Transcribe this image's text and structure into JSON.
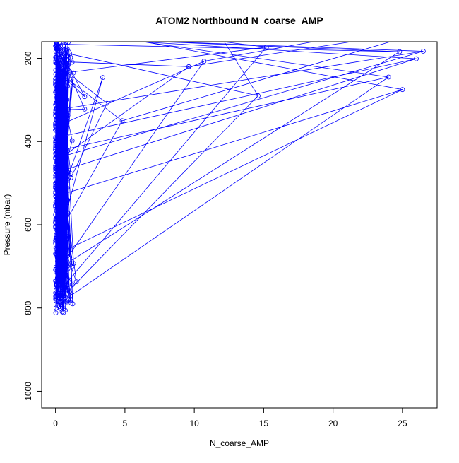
{
  "chart_data": {
    "type": "scatter",
    "title": "ATOM2 Northbound N_coarse_AMP",
    "xlabel": "N_coarse_AMP",
    "ylabel": "Pressure (mbar)",
    "xlim": [
      -1,
      27.5
    ],
    "ylim": [
      1040,
      160
    ],
    "y_reversed": true,
    "x_ticks": [
      0,
      5,
      10,
      15,
      20,
      25
    ],
    "y_ticks": [
      200,
      400,
      600,
      800,
      1000
    ],
    "x_tick_labels": [
      "0",
      "5",
      "10",
      "15",
      "20",
      "25"
    ],
    "y_tick_labels": [
      "200",
      "400",
      "600",
      "800",
      "1000"
    ],
    "marker": "open-circle",
    "connected": true,
    "series_color": "#0000ff",
    "outliers": [
      {
        "x": 26.5,
        "y": 183
      },
      {
        "x": 24.8,
        "y": 184
      },
      {
        "x": 26.0,
        "y": 201
      },
      {
        "x": 24.0,
        "y": 245
      },
      {
        "x": 25.0,
        "y": 275
      },
      {
        "x": 15.2,
        "y": 173
      },
      {
        "x": 14.6,
        "y": 290
      },
      {
        "x": 10.7,
        "y": 207
      },
      {
        "x": 9.6,
        "y": 220
      },
      {
        "x": 4.8,
        "y": 350
      },
      {
        "x": 3.7,
        "y": 308
      },
      {
        "x": 3.4,
        "y": 246
      },
      {
        "x": 2.1,
        "y": 292
      },
      {
        "x": 2.1,
        "y": 322
      },
      {
        "x": 1.2,
        "y": 398
      },
      {
        "x": 1.1,
        "y": 477
      },
      {
        "x": 1.1,
        "y": 487
      },
      {
        "x": 1.5,
        "y": 737
      },
      {
        "x": 1.3,
        "y": 693
      },
      {
        "x": 1.2,
        "y": 700
      },
      {
        "x": 1.0,
        "y": 761
      },
      {
        "x": 1.1,
        "y": 781
      }
    ],
    "top_offscale_x": [
      1.3,
      1.4,
      2.0,
      4.5,
      5.0,
      10.0,
      12.0,
      20.0,
      23.0,
      25.0
    ]
  }
}
